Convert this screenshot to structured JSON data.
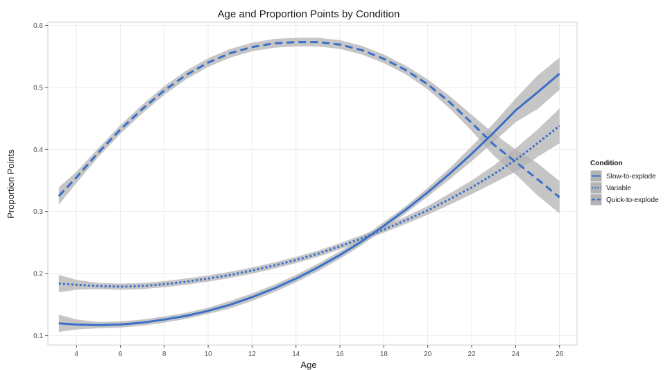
{
  "chart_data": {
    "type": "line",
    "title": "Age and Proportion Points by Condition",
    "xlabel": "Age",
    "ylabel": "Proportion Points",
    "xlim": [
      2.7,
      26.8
    ],
    "ylim": [
      0.085,
      0.605
    ],
    "x_ticks": [
      4,
      6,
      8,
      10,
      12,
      14,
      16,
      18,
      20,
      22,
      24,
      26
    ],
    "y_ticks": [
      0.1,
      0.2,
      0.3,
      0.4,
      0.5,
      0.6
    ],
    "grid": true,
    "legend": {
      "title": "Condition",
      "position": "right"
    },
    "line_color": "#3a6fc9",
    "band_color": "#b3b3b3",
    "series": [
      {
        "name": "Slow-to-explode",
        "style": "solid",
        "x": [
          3.2,
          4,
          5,
          6,
          7,
          8,
          9,
          10,
          11,
          12,
          13,
          14,
          15,
          16,
          17,
          18,
          19,
          20,
          21,
          22,
          23,
          24,
          25,
          26
        ],
        "y": [
          0.12,
          0.118,
          0.117,
          0.118,
          0.121,
          0.126,
          0.132,
          0.14,
          0.15,
          0.162,
          0.176,
          0.192,
          0.21,
          0.23,
          0.252,
          0.277,
          0.303,
          0.331,
          0.361,
          0.393,
          0.427,
          0.463,
          0.492,
          0.522
        ],
        "lower": [
          0.106,
          0.11,
          0.112,
          0.113,
          0.116,
          0.121,
          0.127,
          0.135,
          0.144,
          0.156,
          0.17,
          0.186,
          0.204,
          0.224,
          0.246,
          0.271,
          0.297,
          0.324,
          0.352,
          0.381,
          0.412,
          0.444,
          0.465,
          0.496
        ],
        "upper": [
          0.134,
          0.126,
          0.122,
          0.123,
          0.126,
          0.131,
          0.137,
          0.145,
          0.156,
          0.168,
          0.182,
          0.198,
          0.216,
          0.236,
          0.258,
          0.283,
          0.309,
          0.338,
          0.37,
          0.405,
          0.442,
          0.482,
          0.519,
          0.548
        ]
      },
      {
        "name": "Variable",
        "style": "dotted",
        "x": [
          3.2,
          4,
          5,
          6,
          7,
          8,
          9,
          10,
          11,
          12,
          13,
          14,
          15,
          16,
          17,
          18,
          19,
          20,
          21,
          22,
          23,
          24,
          25,
          26
        ],
        "y": [
          0.184,
          0.182,
          0.18,
          0.179,
          0.18,
          0.183,
          0.187,
          0.192,
          0.198,
          0.205,
          0.213,
          0.222,
          0.232,
          0.244,
          0.257,
          0.271,
          0.286,
          0.302,
          0.32,
          0.339,
          0.36,
          0.383,
          0.41,
          0.438
        ],
        "lower": [
          0.17,
          0.174,
          0.175,
          0.174,
          0.175,
          0.178,
          0.182,
          0.187,
          0.193,
          0.2,
          0.208,
          0.217,
          0.227,
          0.239,
          0.252,
          0.266,
          0.28,
          0.295,
          0.311,
          0.328,
          0.346,
          0.364,
          0.388,
          0.41
        ],
        "upper": [
          0.198,
          0.19,
          0.185,
          0.184,
          0.185,
          0.188,
          0.192,
          0.197,
          0.203,
          0.21,
          0.218,
          0.227,
          0.237,
          0.249,
          0.262,
          0.276,
          0.292,
          0.309,
          0.329,
          0.35,
          0.374,
          0.402,
          0.432,
          0.466
        ]
      },
      {
        "name": "Quick-to-explode",
        "style": "dashed",
        "x": [
          3.2,
          4,
          5,
          6,
          7,
          8,
          9,
          10,
          11,
          12,
          13,
          14,
          15,
          16,
          17,
          18,
          19,
          20,
          21,
          22,
          23,
          24,
          25,
          26
        ],
        "y": [
          0.325,
          0.355,
          0.395,
          0.432,
          0.465,
          0.495,
          0.52,
          0.54,
          0.555,
          0.565,
          0.571,
          0.573,
          0.573,
          0.569,
          0.56,
          0.546,
          0.528,
          0.505,
          0.476,
          0.443,
          0.408,
          0.38,
          0.352,
          0.323
        ],
        "lower": [
          0.311,
          0.346,
          0.388,
          0.425,
          0.458,
          0.488,
          0.513,
          0.533,
          0.548,
          0.558,
          0.564,
          0.566,
          0.566,
          0.562,
          0.553,
          0.539,
          0.521,
          0.497,
          0.466,
          0.43,
          0.39,
          0.36,
          0.326,
          0.297
        ],
        "upper": [
          0.339,
          0.364,
          0.402,
          0.439,
          0.472,
          0.502,
          0.527,
          0.547,
          0.562,
          0.572,
          0.578,
          0.58,
          0.58,
          0.576,
          0.567,
          0.553,
          0.535,
          0.513,
          0.486,
          0.456,
          0.426,
          0.4,
          0.378,
          0.349
        ]
      }
    ]
  }
}
